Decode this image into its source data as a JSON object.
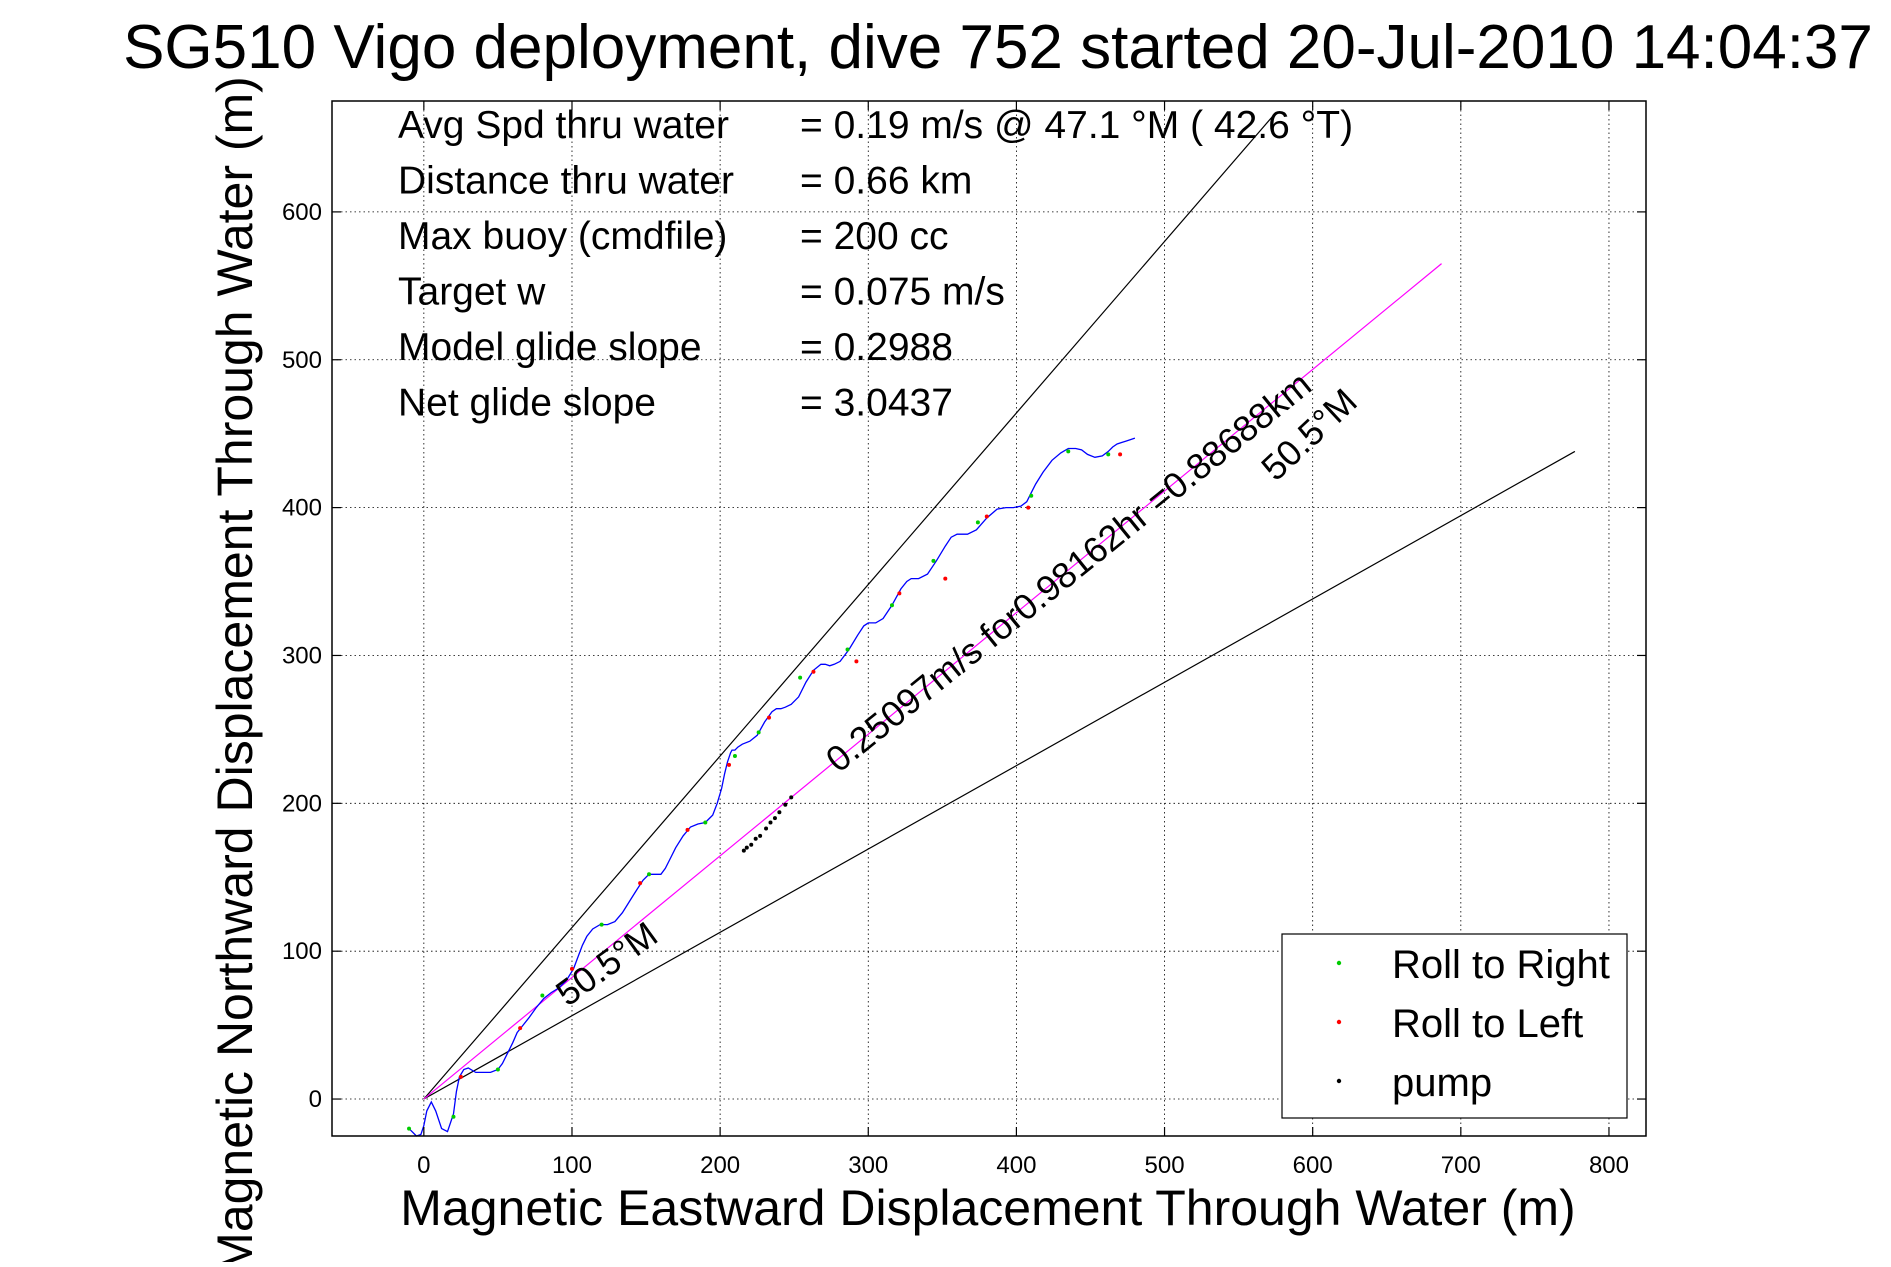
{
  "chart_data": {
    "type": "line",
    "title": "SG510 Vigo deployment, dive 752 started 20-Jul-2010 14:04:37",
    "xlabel": "Magnetic Eastward Displacement Through Water (m)",
    "ylabel": "Magnetic Northward Displacement Through Water (m)",
    "xlim": [
      -62,
      825
    ],
    "ylim": [
      -25,
      675
    ],
    "xticks": [
      0,
      100,
      200,
      300,
      400,
      500,
      600,
      700,
      800
    ],
    "yticks": [
      0,
      100,
      200,
      300,
      400,
      500,
      600
    ],
    "grid": true,
    "info_lines": [
      {
        "label": "Avg Spd thru water",
        "value": "=  0.19 m/s @  47.1 °M ( 42.6 °T)"
      },
      {
        "label": "Distance thru water",
        "value": "=  0.66 km"
      },
      {
        "label": "Max buoy (cmdfile)",
        "value": "= 200 cc"
      },
      {
        "label": "Target w",
        "value": "= 0.075 m/s"
      },
      {
        "label": "Model glide slope",
        "value": "= 0.2988"
      },
      {
        "label": "Net glide slope",
        "value": "= 3.0437"
      }
    ],
    "reference_lines": [
      {
        "color": "#000000",
        "x": [
          0,
          575
        ],
        "y": [
          0,
          667
        ]
      },
      {
        "color": "#000000",
        "x": [
          0,
          777
        ],
        "y": [
          0,
          438
        ]
      },
      {
        "color": "#ff00ff",
        "x": [
          0,
          687
        ],
        "y": [
          0,
          565
        ]
      }
    ],
    "annotations": [
      {
        "text": "50.5°M",
        "x": 575,
        "y": 417,
        "angle": -43
      },
      {
        "text": "50.5°M",
        "x": 97,
        "y": 62,
        "angle": -36
      },
      {
        "text": "0.25097m/s for0.98162hr =0.88688km",
        "x": 280,
        "y": 220,
        "angle": -39
      }
    ],
    "series": [
      {
        "color": "#0000ff",
        "x": [
          -10,
          -5,
          -2,
          0,
          2,
          5,
          8,
          12,
          16,
          20,
          22,
          24,
          27,
          30,
          35,
          40,
          45,
          50,
          53,
          56,
          60,
          63,
          67,
          71,
          76,
          81,
          86,
          91,
          96,
          101,
          104,
          107,
          110,
          114,
          119,
          124,
          129,
          134,
          139,
          144,
          148,
          152,
          156,
          160,
          163,
          166,
          170,
          175,
          180,
          185,
          190,
          195,
          198,
          201,
          203,
          205,
          207,
          208,
          209,
          210,
          212,
          215,
          220,
          225,
          230,
          235,
          238,
          241,
          244,
          248,
          253,
          258,
          263,
          268,
          271,
          274,
          277,
          281,
          287,
          293,
          297,
          300,
          302,
          305,
          310,
          316,
          322,
          326,
          329,
          331,
          334,
          340,
          346,
          352,
          356,
          360,
          363,
          367,
          373,
          380,
          387,
          393,
          398,
          403,
          407,
          410,
          413,
          418,
          424,
          430,
          435,
          440,
          444,
          448,
          453,
          458,
          462,
          465,
          468,
          471,
          474,
          477,
          480
        ],
        "y": [
          -20,
          -25,
          -24,
          -18,
          -8,
          -2,
          -8,
          -20,
          -22,
          -10,
          5,
          15,
          20,
          21,
          18,
          18,
          18,
          20,
          24,
          30,
          38,
          45,
          50,
          55,
          62,
          68,
          72,
          75,
          80,
          88,
          96,
          104,
          110,
          115,
          118,
          118,
          120,
          126,
          134,
          142,
          148,
          152,
          152,
          152,
          156,
          162,
          170,
          178,
          184,
          186,
          187,
          192,
          200,
          210,
          220,
          228,
          234,
          236,
          236,
          236,
          238,
          240,
          242,
          246,
          255,
          262,
          264,
          264,
          265,
          267,
          272,
          282,
          290,
          294,
          294,
          293,
          294,
          296,
          304,
          314,
          320,
          322,
          322,
          322,
          325,
          334,
          345,
          350,
          352,
          352,
          352,
          355,
          364,
          374,
          380,
          382,
          382,
          382,
          385,
          393,
          399,
          400,
          400,
          401,
          404,
          410,
          416,
          424,
          432,
          437,
          440,
          440,
          439,
          436,
          434,
          435,
          438,
          441,
          443,
          444,
          445,
          446,
          447
        ]
      }
    ],
    "markers": [
      {
        "name": "Roll to Right",
        "color": "#00cc00",
        "x": [
          -10,
          20,
          50,
          80,
          120,
          152,
          190,
          210,
          226,
          254,
          286,
          316,
          344,
          374,
          410,
          435,
          462
        ],
        "y": [
          -20,
          -12,
          20,
          70,
          118,
          152,
          187,
          232,
          248,
          285,
          304,
          334,
          364,
          390,
          408,
          438,
          436
        ]
      },
      {
        "name": "Roll to Left",
        "color": "#ff0000",
        "x": [
          25,
          65,
          100,
          146,
          178,
          206,
          233,
          263,
          292,
          321,
          352,
          380,
          408,
          470
        ],
        "y": [
          15,
          48,
          88,
          146,
          182,
          226,
          258,
          289,
          296,
          342,
          352,
          394,
          400,
          436
        ]
      },
      {
        "name": "pump",
        "color": "#000000",
        "x": [
          216,
          218,
          221,
          224,
          227,
          231,
          234,
          237,
          240,
          244,
          248
        ],
        "y": [
          168,
          170,
          172,
          176,
          178,
          183,
          187,
          190,
          194,
          199,
          204
        ]
      }
    ],
    "legend": {
      "position": "bottom-right",
      "entries": [
        {
          "label": "Roll to Right",
          "color": "#00cc00"
        },
        {
          "label": "Roll to Left",
          "color": "#ff0000"
        },
        {
          "label": "pump",
          "color": "#000000"
        }
      ]
    }
  }
}
